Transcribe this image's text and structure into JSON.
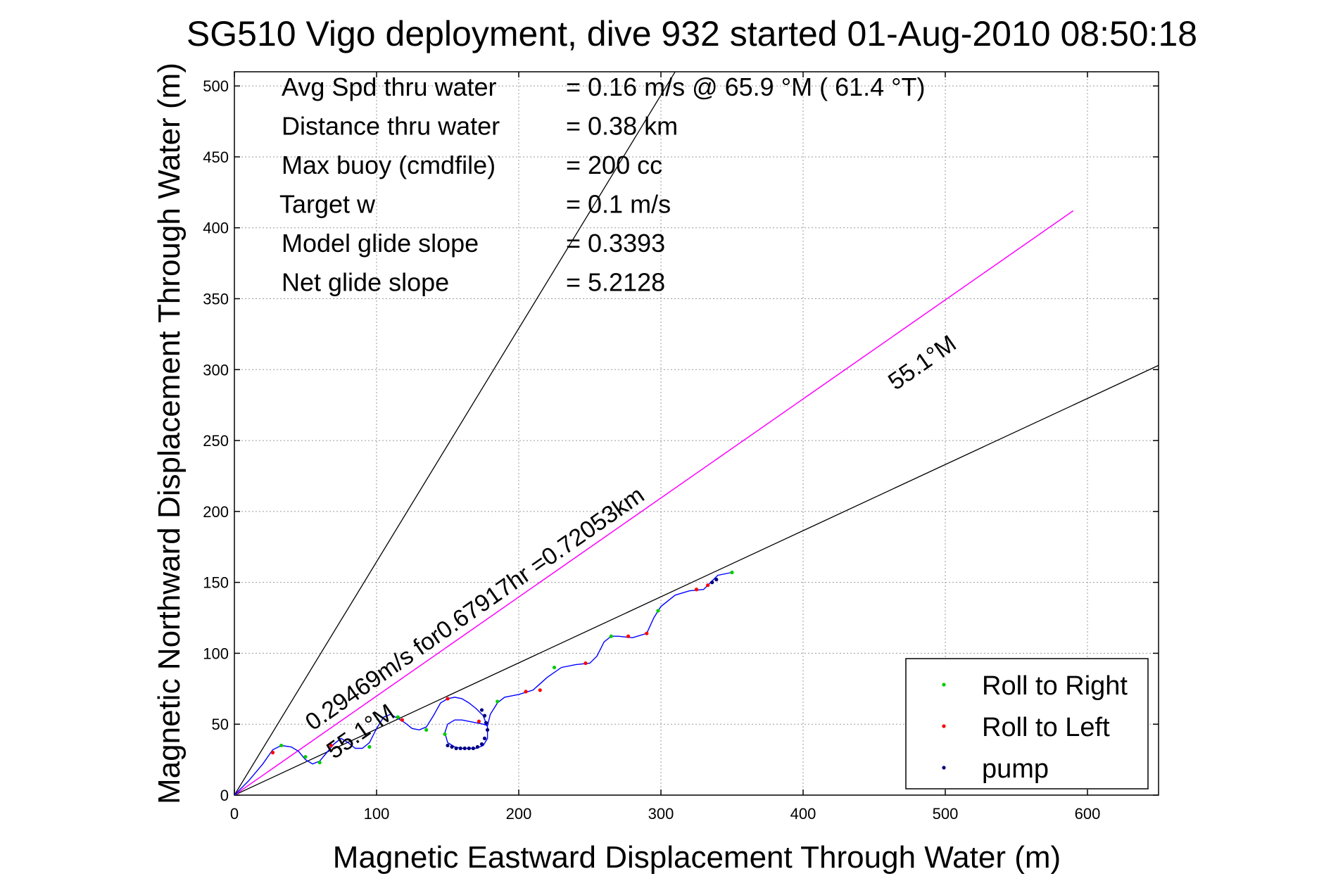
{
  "chart_data": {
    "type": "line",
    "title": "SG510 Vigo deployment, dive 932 started 01-Aug-2010 08:50:18",
    "xlabel": "Magnetic Eastward Displacement Through Water (m)",
    "ylabel": "Magnetic Northward Displacement Through Water (m)",
    "xlim": [
      0,
      650
    ],
    "ylim": [
      0,
      510
    ],
    "xticks": [
      0,
      100,
      200,
      300,
      400,
      500,
      600
    ],
    "yticks": [
      0,
      50,
      100,
      150,
      200,
      250,
      300,
      350,
      400,
      450,
      500
    ],
    "xtick_labels": [
      "0",
      "100",
      "200",
      "300",
      "400",
      "500",
      "600"
    ],
    "ytick_labels": [
      "0",
      "50",
      "100",
      "150",
      "200",
      "250",
      "300",
      "350",
      "400",
      "450",
      "500"
    ],
    "grid": true,
    "legend_position": "bottom-right",
    "colors": {
      "track": "#0000ff",
      "glide_line": "#ff00ff",
      "reference": "#000000",
      "roll_right": "#00cc00",
      "roll_left": "#ff0000",
      "pump": "#000080"
    },
    "info": [
      {
        "label": "Avg Spd thru water",
        "value": "=  0.16 m/s @  65.9 °M ( 61.4 °T)"
      },
      {
        "label": "Distance thru water",
        "value": "=  0.38 km"
      },
      {
        "label": "Max buoy (cmdfile)",
        "value": "= 200 cc"
      },
      {
        "label": "Target w",
        "value": "= 0.1 m/s"
      },
      {
        "label": "Model glide slope",
        "value": "= 0.3393"
      },
      {
        "label": "Net glide slope",
        "value": "= 5.2128"
      }
    ],
    "annotations": [
      {
        "text": "0.29469m/s for0.67917hr =0.72053km",
        "x": 55,
        "y": 45,
        "angle_deg": 34.9
      },
      {
        "text": "55.1°M",
        "x": 465,
        "y": 285,
        "angle_deg": 34.9
      },
      {
        "text": "55.1°M",
        "x": 70,
        "y": 25,
        "angle_deg": 34.9
      }
    ],
    "reference_lines": [
      {
        "name": "upper",
        "x": [
          0,
          310
        ],
        "y": [
          0,
          510
        ]
      },
      {
        "name": "lower",
        "x": [
          0,
          650
        ],
        "y": [
          0,
          303
        ]
      }
    ],
    "glide_line": {
      "x": [
        0,
        590
      ],
      "y": [
        0,
        412
      ]
    },
    "track": {
      "x": [
        0,
        10,
        20,
        27,
        33,
        40,
        45,
        50,
        55,
        60,
        65,
        70,
        75,
        80,
        85,
        90,
        95,
        100,
        105,
        110,
        115,
        120,
        125,
        130,
        135,
        140,
        145,
        150,
        155,
        160,
        165,
        170,
        175,
        178,
        178,
        175,
        170,
        165,
        160,
        155,
        150,
        148,
        150,
        155,
        160,
        165,
        170,
        175,
        178,
        180,
        185,
        190,
        195,
        200,
        210,
        220,
        230,
        240,
        250,
        255,
        260,
        265,
        270,
        280,
        290,
        295,
        300,
        310,
        320,
        330,
        335,
        340,
        350
      ],
      "y": [
        0,
        10,
        22,
        32,
        35,
        34,
        31,
        25,
        22,
        24,
        30,
        36,
        40,
        37,
        33,
        33,
        37,
        47,
        55,
        57,
        54,
        51,
        47,
        46,
        48,
        56,
        65,
        68,
        69,
        68,
        65,
        61,
        56,
        48,
        40,
        35,
        33,
        33,
        33,
        34,
        37,
        44,
        50,
        53,
        53,
        52,
        51,
        50,
        49,
        57,
        65,
        69,
        70,
        71,
        74,
        83,
        90,
        92,
        93,
        98,
        108,
        112,
        112,
        111,
        114,
        125,
        133,
        141,
        144,
        145,
        150,
        155,
        157
      ]
    },
    "series": [
      {
        "name": "Roll to Right",
        "x": [
          33,
          50,
          60,
          95,
          115,
          135,
          148,
          185,
          225,
          265,
          298,
          350
        ],
        "y": [
          35,
          27,
          23,
          34,
          55,
          46,
          43,
          66,
          90,
          112,
          130,
          157
        ]
      },
      {
        "name": "Roll to Left",
        "x": [
          27,
          68,
          118,
          150,
          172,
          205,
          215,
          247,
          277,
          290,
          325,
          333
        ],
        "y": [
          30,
          35,
          53,
          68,
          52,
          73,
          74,
          93,
          112,
          114,
          145,
          148
        ]
      },
      {
        "name": "pump",
        "x": [
          150,
          153,
          156,
          159,
          162,
          165,
          168,
          171,
          174,
          176,
          178,
          177,
          176,
          174,
          336,
          339
        ],
        "y": [
          35,
          34,
          33,
          33,
          33,
          33,
          33,
          34,
          36,
          40,
          46,
          51,
          56,
          60,
          150,
          152
        ]
      }
    ]
  }
}
